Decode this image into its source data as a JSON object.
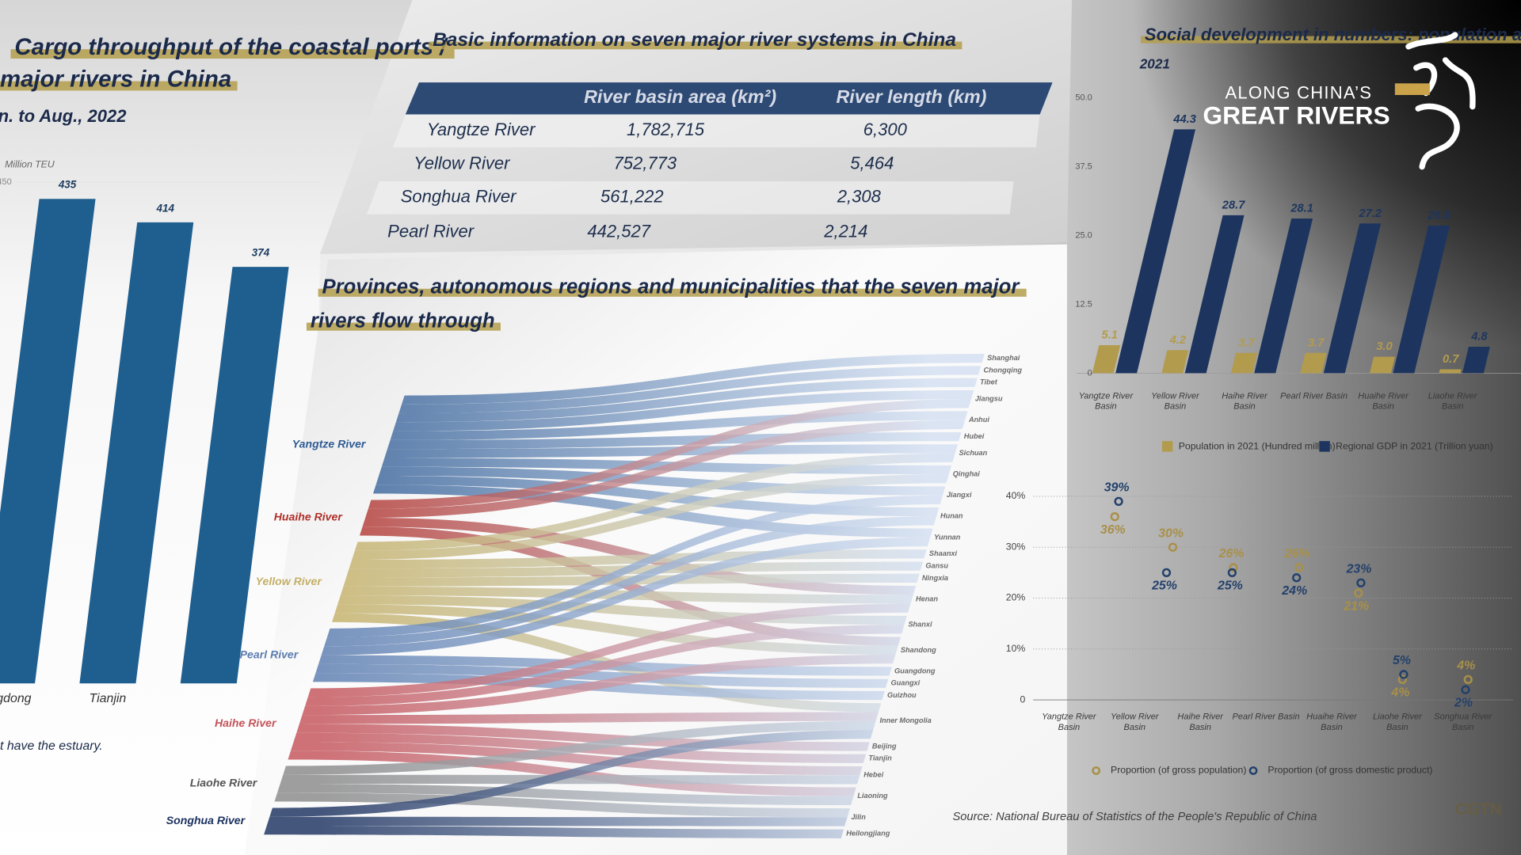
{
  "chart_data": [
    {
      "type": "bar",
      "title": [
        "Cargo throughput of the coastal ports /",
        "major rivers in China"
      ],
      "subtitle": "n. to Aug., 2022",
      "y_unit": "Million TEU",
      "note": "t have the estuary.",
      "categories": [
        "angdong",
        "Tianjin",
        null
      ],
      "values": [
        435,
        414,
        374
      ],
      "color": "#1f5f8f",
      "ylim": [
        0,
        450
      ],
      "yticks": [
        450
      ],
      "grid": true
    },
    {
      "type": "grouped_bar",
      "title": "Social development in numbers: population and GD",
      "subtitle": "2021",
      "categories": [
        "Yangtze River Basin",
        "Yellow River Basin",
        "Haihe River Basin",
        "Pearl River Basin",
        "Huaihe River Basin",
        "Liaohe River Basin"
      ],
      "series": [
        {
          "name": "Population in 2021 (Hundred million)",
          "color": "#b39b4e",
          "values": [
            5.1,
            4.2,
            3.7,
            3.7,
            3.0,
            0.7
          ],
          "value_labels": [
            "5.1",
            "4.2",
            "3.7",
            "3.7",
            "3.0",
            "0.7"
          ]
        },
        {
          "name": "Regional GDP in 2021 (Trillion yuan)",
          "color": "#1d355e",
          "values": [
            44.3,
            28.7,
            28.1,
            27.2,
            26.8,
            4.8
          ]
        }
      ],
      "ylim": [
        0,
        50
      ],
      "yticks": [
        0,
        12.5,
        {
          "value": 25,
          "label": "25.0"
        },
        37.5,
        {
          "value": 50,
          "label": "50.0"
        }
      ],
      "grid": false
    },
    {
      "type": "dot",
      "categories": [
        "Yangtze River Basin",
        "Yellow River Basin",
        "Haihe River Basin",
        "Pearl River Basin",
        "Huaihe River Basin",
        "Liaohe River Basin",
        "Songhua River Basin"
      ],
      "series": [
        {
          "name": "Proportion (of gross population)",
          "color": "#a89048",
          "values": [
            36,
            30,
            26,
            26,
            21,
            4,
            4
          ],
          "value_labels": [
            "36%",
            "30%",
            "26%",
            "26%",
            "21%",
            "4%",
            "4%"
          ]
        },
        {
          "name": "Proportion (of gross domestic product)",
          "color": "#23406b",
          "values": [
            39,
            25,
            25,
            24,
            23,
            5,
            2
          ],
          "value_labels": [
            "39%",
            "25%",
            "25%",
            "24%",
            "23%",
            "5%",
            "2%"
          ]
        }
      ],
      "ylim": [
        0,
        40
      ],
      "yticks": [
        0,
        {
          "value": 10,
          "label": "10%"
        },
        {
          "value": 20,
          "label": "20%"
        },
        {
          "value": 30,
          "label": "30%"
        },
        {
          "value": 40,
          "label": "40%"
        }
      ],
      "grid": true
    }
  ],
  "table": {
    "title": "Basic information on seven major river systems in China",
    "columns": [
      "River basin area (km²)",
      "River length (km)"
    ],
    "rows": [
      [
        "Yangtze River",
        "1,782,715",
        "6,300"
      ],
      [
        "Yellow River",
        "752,773",
        "5,464"
      ],
      [
        "Songhua River",
        "561,222",
        "2,308"
      ],
      [
        "Pearl River",
        "442,527",
        "2,214"
      ]
    ]
  },
  "sankey": {
    "title": [
      "Provinces, autonomous regions and municipalities that the seven major",
      "rivers flow through"
    ],
    "sources": [
      {
        "name": "Yangtze River",
        "color": "#2f5c95"
      },
      {
        "name": "Huaihe River",
        "color": "#b0302a"
      },
      {
        "name": "Yellow River",
        "color": "#c4b066"
      },
      {
        "name": "Pearl River",
        "color": "#5b7db0"
      },
      {
        "name": "Haihe River",
        "color": "#c4545a"
      },
      {
        "name": "Liaohe River",
        "color": "#8a8a8a"
      },
      {
        "name": "Songhua River",
        "color": "#1c3260"
      }
    ],
    "targets": [
      "Shanghai",
      "Chongqing",
      "Tibet",
      "Jiangsu",
      "Anhui",
      "Hubei",
      "Sichuan",
      "Qinghai",
      "Jiangxi",
      "Hunan",
      "Yunnan",
      "Shaanxi",
      "Gansu",
      "Ningxia",
      "Henan",
      "Shanxi",
      "Shandong",
      "Guangdong",
      "Guangxi",
      "Guizhou",
      "Inner Mongolia",
      "Beijing",
      "Tianjin",
      "Hebei",
      "Liaoning",
      "Jilin",
      "Heilongjiang"
    ],
    "links": [
      [
        0,
        0
      ],
      [
        0,
        1
      ],
      [
        0,
        2
      ],
      [
        0,
        3
      ],
      [
        0,
        4
      ],
      [
        0,
        5
      ],
      [
        0,
        6
      ],
      [
        0,
        7
      ],
      [
        0,
        8
      ],
      [
        0,
        9
      ],
      [
        0,
        10
      ],
      [
        1,
        3
      ],
      [
        1,
        4
      ],
      [
        1,
        14
      ],
      [
        1,
        16
      ],
      [
        2,
        6
      ],
      [
        2,
        7
      ],
      [
        2,
        11
      ],
      [
        2,
        12
      ],
      [
        2,
        13
      ],
      [
        2,
        14
      ],
      [
        2,
        15
      ],
      [
        2,
        16
      ],
      [
        2,
        20
      ],
      [
        3,
        8
      ],
      [
        3,
        9
      ],
      [
        3,
        10
      ],
      [
        3,
        17
      ],
      [
        3,
        18
      ],
      [
        3,
        19
      ],
      [
        4,
        14
      ],
      [
        4,
        15
      ],
      [
        4,
        16
      ],
      [
        4,
        20
      ],
      [
        4,
        21
      ],
      [
        4,
        22
      ],
      [
        4,
        23
      ],
      [
        4,
        24
      ],
      [
        5,
        20
      ],
      [
        5,
        23
      ],
      [
        5,
        24
      ],
      [
        5,
        25
      ],
      [
        6,
        20
      ],
      [
        6,
        25
      ],
      [
        6,
        26
      ]
    ]
  },
  "brand": {
    "line1": "ALONG CHINA’S",
    "line2": "GREAT RIVERS",
    "logo": "CGTN"
  },
  "source": "Source: National Bureau of Statistics of the People's Republic of China"
}
